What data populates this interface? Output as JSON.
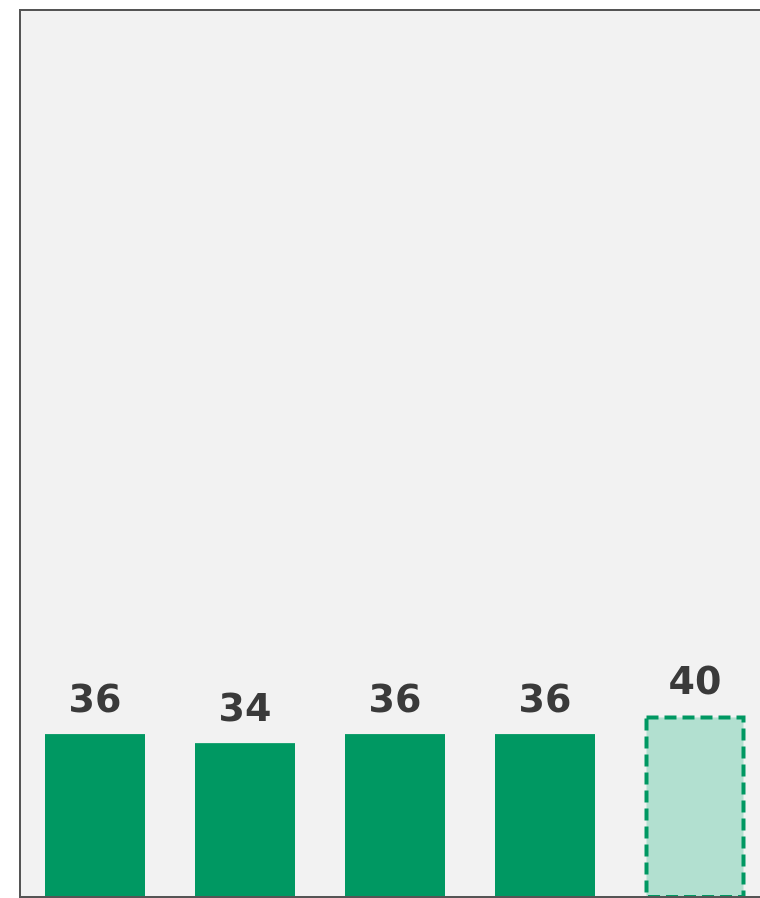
{
  "chart_data": {
    "type": "bar",
    "categories": [
      "",
      "",
      "",
      "",
      ""
    ],
    "values": [
      36,
      34,
      36,
      36,
      40
    ],
    "value_labels": [
      "36",
      "34",
      "36",
      "36",
      "40"
    ],
    "projected_index": 4,
    "title": "",
    "xlabel": "",
    "ylabel": "",
    "ylim": [
      0,
      196
    ],
    "grid": false,
    "legend": "none",
    "colors": {
      "bar": "#009862",
      "projected_fill": "#b2e0d0",
      "projected_border": "#009862",
      "plot_background": "#f2f2f2",
      "axis": "#555555",
      "label": "#3a3a3a"
    }
  }
}
